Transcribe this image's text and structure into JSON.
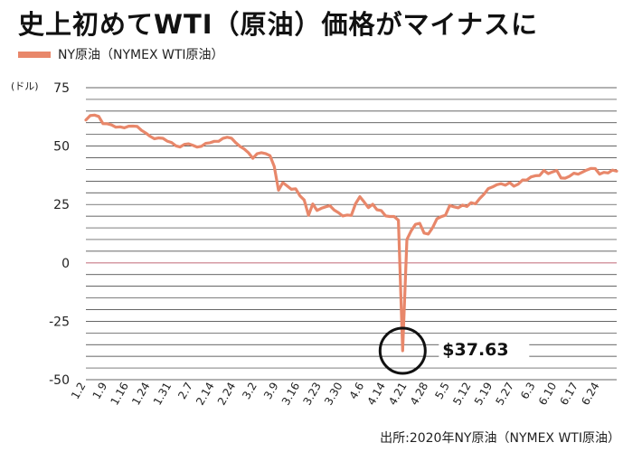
{
  "title": "史上初めてWTI（原油）価格がマイナスに",
  "legend": "NY原油（NYMEX WTI原油）",
  "source": "出所:2020年NY原油（NYMEX WTI原油）",
  "colors": {
    "series": "#e8876a",
    "grid": "#333333",
    "zero_line": "#c87a86"
  },
  "chart_data": {
    "type": "line",
    "unit_label": "(ドル)",
    "ylim": [
      -50,
      75
    ],
    "yticks": [
      75,
      50,
      25,
      0,
      -25,
      -50
    ],
    "grid": true,
    "legend_position": "top-left",
    "x_ticks": [
      "1.2",
      "1.9",
      "1.16",
      "1.24",
      "1.31",
      "2.7",
      "2.14",
      "2.24",
      "3.2",
      "3.9",
      "3.16",
      "3.23",
      "3.30",
      "4.6",
      "4.14",
      "4.21",
      "4.28",
      "5.5",
      "5.12",
      "5.19",
      "5.27",
      "6.3",
      "6.10",
      "6.17",
      "6.24"
    ],
    "series": [
      {
        "name": "NY原油（NYMEX WTI原油）",
        "x": [
          "1.2",
          "1.3",
          "1.6",
          "1.7",
          "1.8",
          "1.9",
          "1.10",
          "1.13",
          "1.14",
          "1.15",
          "1.16",
          "1.17",
          "1.21",
          "1.22",
          "1.23",
          "1.24",
          "1.27",
          "1.28",
          "1.29",
          "1.30",
          "1.31",
          "2.3",
          "2.4",
          "2.5",
          "2.6",
          "2.7",
          "2.10",
          "2.11",
          "2.12",
          "2.13",
          "2.14",
          "2.18",
          "2.19",
          "2.20",
          "2.21",
          "2.24",
          "2.25",
          "2.26",
          "2.27",
          "2.28",
          "3.2",
          "3.3",
          "3.4",
          "3.5",
          "3.6",
          "3.9",
          "3.10",
          "3.11",
          "3.12",
          "3.13",
          "3.16",
          "3.17",
          "3.18",
          "3.19",
          "3.20",
          "3.23",
          "3.24",
          "3.25",
          "3.26",
          "3.27",
          "3.30",
          "3.31",
          "4.1",
          "4.2",
          "4.3",
          "4.6",
          "4.7",
          "4.8",
          "4.9",
          "4.13",
          "4.14",
          "4.15",
          "4.16",
          "4.17",
          "4.20",
          "4.21",
          "4.22",
          "4.23",
          "4.24",
          "4.27",
          "4.28",
          "4.29",
          "4.30",
          "5.1",
          "5.4",
          "5.5",
          "5.6",
          "5.7",
          "5.8",
          "5.11",
          "5.12",
          "5.13",
          "5.14",
          "5.15",
          "5.18",
          "5.19",
          "5.20",
          "5.21",
          "5.22",
          "5.26",
          "5.27",
          "5.28",
          "5.29",
          "6.1",
          "6.2",
          "6.3",
          "6.4",
          "6.5",
          "6.8",
          "6.9",
          "6.10",
          "6.11",
          "6.12",
          "6.15",
          "6.16",
          "6.17",
          "6.18",
          "6.19",
          "6.22",
          "6.23",
          "6.24",
          "6.25",
          "6.26",
          "6.29",
          "6.30"
        ],
        "values": [
          61.18,
          63.05,
          63.27,
          62.7,
          59.61,
          59.56,
          59.04,
          58.08,
          58.23,
          57.81,
          58.52,
          58.54,
          58.38,
          56.74,
          55.59,
          54.19,
          53.14,
          53.48,
          53.33,
          52.14,
          51.56,
          50.11,
          49.61,
          50.75,
          50.95,
          50.32,
          49.57,
          49.94,
          51.17,
          51.42,
          52.05,
          52.05,
          53.29,
          53.78,
          53.38,
          51.43,
          49.9,
          48.73,
          47.09,
          44.76,
          46.75,
          47.18,
          46.78,
          45.9,
          41.28,
          31.13,
          34.36,
          32.98,
          31.5,
          31.73,
          28.7,
          26.95,
          20.37,
          25.22,
          22.43,
          23.36,
          24.01,
          24.49,
          22.6,
          21.51,
          20.09,
          20.48,
          20.31,
          25.32,
          28.34,
          26.08,
          23.63,
          25.09,
          22.76,
          22.41,
          20.11,
          19.87,
          19.87,
          18.27,
          -37.63,
          10.01,
          13.78,
          16.5,
          16.94,
          12.78,
          12.34,
          15.06,
          18.84,
          19.78,
          20.39,
          24.56,
          23.99,
          23.55,
          24.74,
          24.14,
          25.78,
          25.29,
          27.56,
          29.43,
          31.82,
          32.5,
          33.49,
          33.92,
          33.25,
          34.35,
          32.81,
          33.71,
          35.49,
          35.44,
          36.81,
          37.29,
          37.41,
          39.55,
          38.19,
          38.94,
          39.6,
          36.34,
          36.26,
          37.12,
          38.38,
          37.96,
          38.84,
          39.75,
          40.46,
          40.37,
          38.01,
          38.72,
          38.49,
          39.7,
          39.27
        ]
      }
    ],
    "annotations": [
      {
        "x": "4.20",
        "y": -37.63,
        "text": "$37.63"
      }
    ]
  }
}
